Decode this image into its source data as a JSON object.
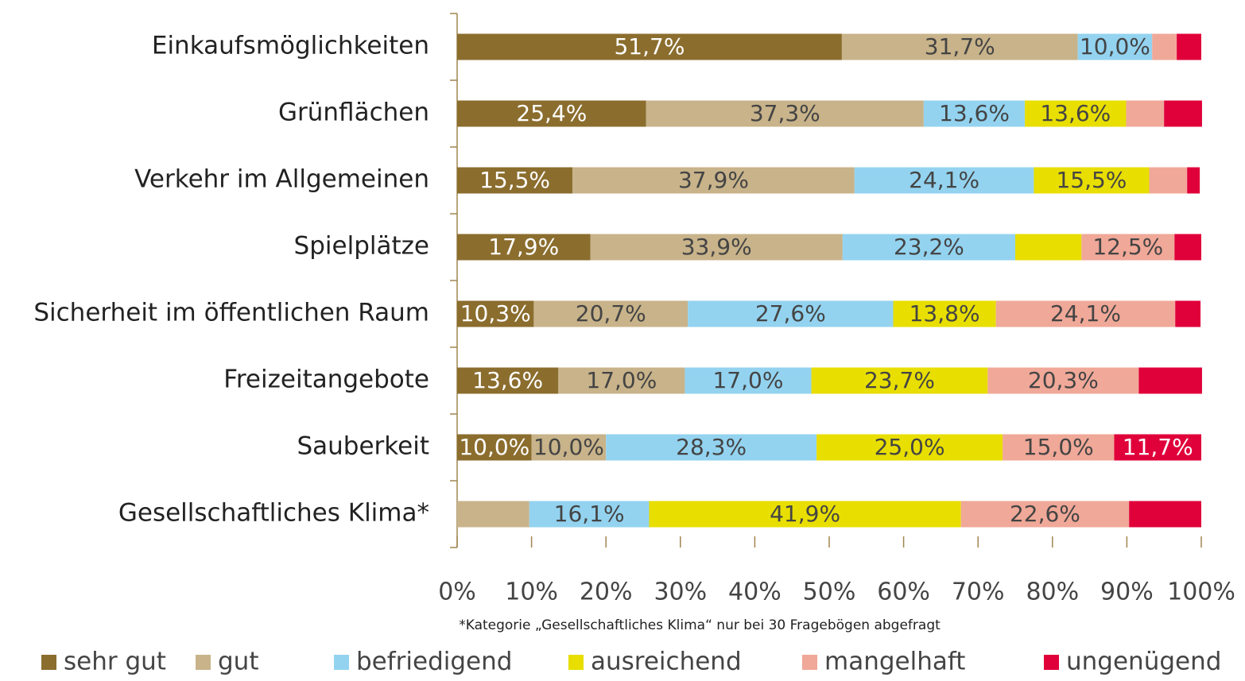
{
  "chart_data": {
    "type": "stacked_bar_horizontal",
    "categories": [
      "Einkaufsmöglichkeiten",
      "Grünflächen",
      "Verkehr im Allgemeinen",
      "Spielplätze",
      "Sicherheit im öffentlichen Raum",
      "Freizeitangebote",
      "Sauberkeit",
      "Gesellschaftliches Klima*"
    ],
    "series": [
      {
        "name": "sehr gut",
        "color": "#8b6d2e",
        "label_color": "#ffffff",
        "values": [
          51.7,
          25.4,
          15.5,
          17.9,
          10.3,
          13.6,
          10.0,
          0
        ],
        "value_labels": [
          "51,7%",
          "25,4%",
          "15,5%",
          "17,9%",
          "10,3%",
          "13,6%",
          "10,0%",
          null
        ]
      },
      {
        "name": "gut",
        "color": "#c8b38a",
        "label_color": "#444444",
        "values": [
          31.7,
          37.3,
          37.9,
          33.9,
          20.7,
          17.0,
          10.0,
          9.7
        ],
        "value_labels": [
          "31,7%",
          "37,3%",
          "37,9%",
          "33,9%",
          "20,7%",
          "17,0%",
          "10,0%",
          null
        ]
      },
      {
        "name": "befriedigend",
        "color": "#93d3f0",
        "label_color": "#444444",
        "values": [
          10.0,
          13.6,
          24.1,
          23.2,
          27.6,
          17.0,
          28.3,
          16.1
        ],
        "value_labels": [
          "10,0%",
          "13,6%",
          "24,1%",
          "23,2%",
          "27,6%",
          "17,0%",
          "28,3%",
          "16,1%"
        ]
      },
      {
        "name": "ausreichend",
        "color": "#e8de00",
        "label_color": "#444444",
        "values": [
          0,
          13.6,
          15.5,
          8.9,
          13.8,
          23.7,
          25.0,
          41.9
        ],
        "value_labels": [
          null,
          "13,6%",
          "15,5%",
          null,
          "13,8%",
          "23,7%",
          "25,0%",
          "41,9%"
        ]
      },
      {
        "name": "mangelhaft",
        "color": "#f0a898",
        "label_color": "#444444",
        "values": [
          3.3,
          5.1,
          5.1,
          12.5,
          24.1,
          20.3,
          15.0,
          22.6
        ],
        "value_labels": [
          null,
          null,
          null,
          "12,5%",
          "24,1%",
          "20,3%",
          "15,0%",
          "22,6%"
        ]
      },
      {
        "name": "ungenügend",
        "color": "#e0003a",
        "label_color": "#ffffff",
        "values": [
          3.3,
          5.1,
          1.7,
          3.6,
          3.4,
          8.5,
          11.7,
          9.7
        ],
        "value_labels": [
          null,
          null,
          null,
          null,
          null,
          null,
          "11,7%",
          null
        ]
      }
    ],
    "xlim": [
      0,
      100
    ],
    "xticks": [
      {
        "value": 0,
        "label": "0%"
      },
      {
        "value": 10,
        "label": "10%"
      },
      {
        "value": 20,
        "label": "20%"
      },
      {
        "value": 30,
        "label": "30%"
      },
      {
        "value": 40,
        "label": "40%"
      },
      {
        "value": 50,
        "label": "50%"
      },
      {
        "value": 60,
        "label": "60%"
      },
      {
        "value": 70,
        "label": "70%"
      },
      {
        "value": 80,
        "label": "80%"
      },
      {
        "value": 90,
        "label": "90%"
      },
      {
        "value": 100,
        "label": "100%"
      }
    ],
    "footnote": "*Kategorie „Gesellschaftliches Klima“ nur bei 30 Fragebögen abgefragt",
    "legend": "bottom"
  }
}
